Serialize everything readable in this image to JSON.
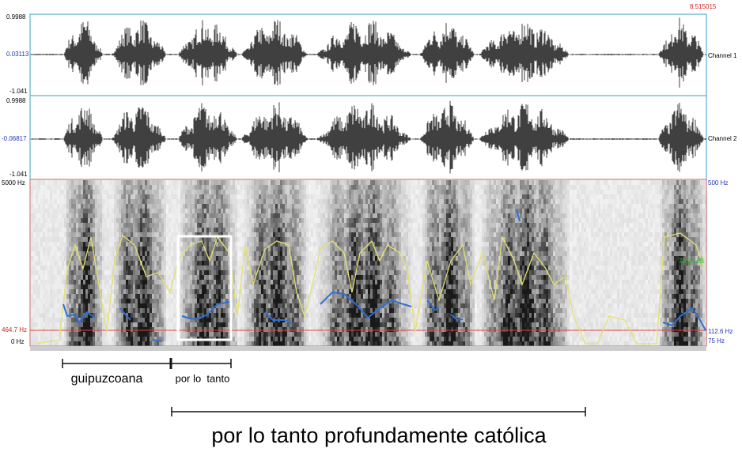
{
  "window": {
    "time_end": "8.515015",
    "channels": [
      {
        "name": "Channel 1",
        "max": "0.9988",
        "cursor": "0.03113",
        "min": "-1.041"
      },
      {
        "name": "Channel 2",
        "max": "0.9988",
        "cursor": "-0.06817",
        "min": "-1.041"
      }
    ],
    "spectrogram": {
      "top": "5000 Hz",
      "cursor": "464.7 Hz",
      "bottom": "0 Hz",
      "pitch_top": "500 Hz",
      "intensity": "75.22 dB",
      "pitch_value": "112.6 Hz",
      "pitch_bottom": "75 Hz"
    }
  },
  "annotations": {
    "word1": "guipuzcoana",
    "word2": "por lo  tanto",
    "phrase": "por lo tanto profundamente católica"
  }
}
